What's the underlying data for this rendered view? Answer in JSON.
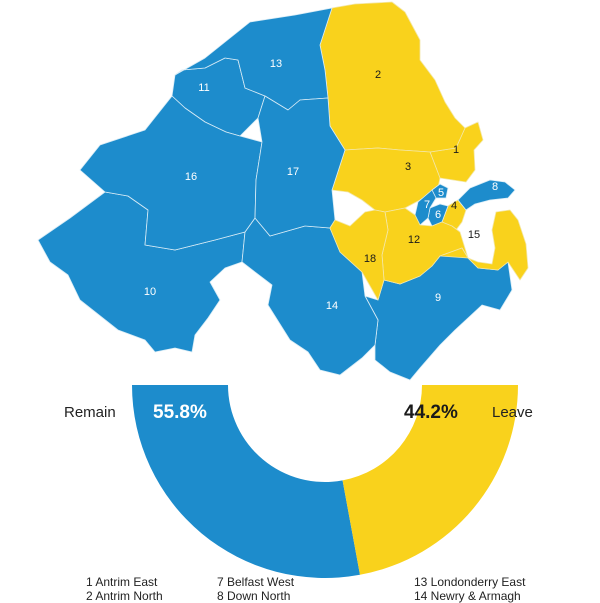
{
  "colors": {
    "remain": "#1d8ccc",
    "leave": "#f9d21c",
    "border": "#d9ecf6",
    "text_on_blue": "#ffffff",
    "text_on_yellow": "#1a1a1a"
  },
  "map": {
    "regions": [
      {
        "number": "1",
        "result": "leave"
      },
      {
        "number": "2",
        "result": "leave"
      },
      {
        "number": "3",
        "result": "leave"
      },
      {
        "number": "4",
        "result": "leave"
      },
      {
        "number": "5",
        "result": "remain"
      },
      {
        "number": "6",
        "result": "remain"
      },
      {
        "number": "7",
        "result": "remain"
      },
      {
        "number": "8",
        "result": "remain"
      },
      {
        "number": "9",
        "result": "remain"
      },
      {
        "number": "10",
        "result": "remain"
      },
      {
        "number": "11",
        "result": "remain"
      },
      {
        "number": "12",
        "result": "leave"
      },
      {
        "number": "13",
        "result": "remain"
      },
      {
        "number": "14",
        "result": "remain"
      },
      {
        "number": "15",
        "result": "leave"
      },
      {
        "number": "16",
        "result": "remain"
      },
      {
        "number": "17",
        "result": "remain"
      },
      {
        "number": "18",
        "result": "leave"
      }
    ]
  },
  "chart_data": {
    "type": "pie",
    "slices": [
      {
        "label": "Remain",
        "value": 55.8,
        "display": "55.8%",
        "color": "#1d8ccc"
      },
      {
        "label": "Leave",
        "value": 44.2,
        "display": "44.2%",
        "color": "#f9d21c"
      }
    ]
  },
  "legend": {
    "col1": [
      "1 Antrim East",
      "2 Antrim North"
    ],
    "col2": [
      "7 Belfast West",
      "8 Down North"
    ],
    "col3": [
      "13 Londonderry East",
      "14 Newry & Armagh"
    ]
  }
}
